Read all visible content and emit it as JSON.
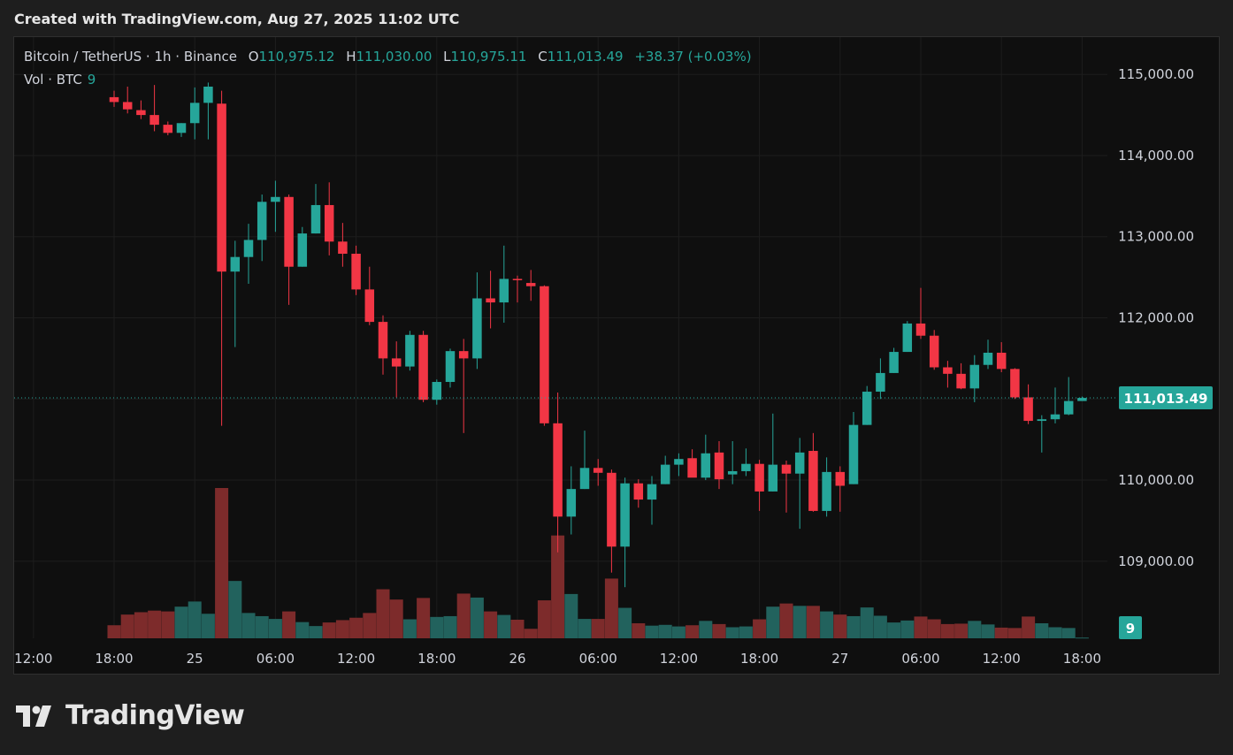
{
  "caption": "Created with TradingView.com, Aug 27, 2025 11:02 UTC",
  "legend": {
    "symbol": "Bitcoin / TetherUS · 1h · Binance",
    "o_label": "O",
    "o_value": "110,975.12",
    "h_label": "H",
    "h_value": "111,030.00",
    "l_label": "L",
    "l_value": "110,975.11",
    "c_label": "C",
    "c_value": "111,013.49",
    "change": "+38.37 (+0.03%)"
  },
  "volume_legend": {
    "label": "Vol · BTC",
    "value": "9"
  },
  "logo": {
    "text": "TradingView",
    "icon": "tradingview-logo-icon"
  },
  "colors": {
    "up": "#26a69a",
    "down": "#f23645",
    "vol_up": "#22625d",
    "vol_down": "#7d2b2b",
    "background": "#0f0f0f",
    "grid": "#1d1d1d"
  },
  "chart_data": {
    "type": "candlestick",
    "price_axis": {
      "ticks": [
        109000,
        110000,
        111000,
        112000,
        113000,
        114000,
        115000
      ],
      "tick_labels": [
        "109,000.00",
        "110,000.00",
        "111,000.00",
        "112,000.00",
        "113,000.00",
        "114,000.00",
        "115,000.00"
      ],
      "range": [
        108050,
        115460
      ]
    },
    "time_axis": {
      "ticks": [
        {
          "label": "12:00",
          "index": -6
        },
        {
          "label": "18:00",
          "index": 0
        },
        {
          "label": "25",
          "index": 6
        },
        {
          "label": "06:00",
          "index": 12
        },
        {
          "label": "12:00",
          "index": 18
        },
        {
          "label": "18:00",
          "index": 24
        },
        {
          "label": "26",
          "index": 30
        },
        {
          "label": "06:00",
          "index": 36
        },
        {
          "label": "12:00",
          "index": 42
        },
        {
          "label": "18:00",
          "index": 48
        },
        {
          "label": "27",
          "index": 54
        },
        {
          "label": "06:00",
          "index": 60
        },
        {
          "label": "12:00",
          "index": 66
        },
        {
          "label": "18:00",
          "index": 72
        }
      ]
    },
    "last_price": {
      "value": 111013.49,
      "label": "111,013.49"
    },
    "last_volume": {
      "value": 9,
      "label": "9"
    },
    "volume_range": [
      0,
      1900
    ],
    "candles": [
      {
        "o": 114720,
        "h": 114800,
        "l": 114600,
        "c": 114660,
        "v": 165
      },
      {
        "o": 114660,
        "h": 114850,
        "l": 114520,
        "c": 114570,
        "v": 300
      },
      {
        "o": 114560,
        "h": 114680,
        "l": 114450,
        "c": 114500,
        "v": 330
      },
      {
        "o": 114500,
        "h": 114870,
        "l": 114300,
        "c": 114380,
        "v": 350
      },
      {
        "o": 114380,
        "h": 114420,
        "l": 114250,
        "c": 114280,
        "v": 340
      },
      {
        "o": 114280,
        "h": 114400,
        "l": 114230,
        "c": 114400,
        "v": 400
      },
      {
        "o": 114400,
        "h": 114840,
        "l": 114200,
        "c": 114650,
        "v": 465
      },
      {
        "o": 114650,
        "h": 114900,
        "l": 114200,
        "c": 114850,
        "v": 310
      },
      {
        "o": 114640,
        "h": 114800,
        "l": 110670,
        "c": 112570,
        "v": 1900
      },
      {
        "o": 112570,
        "h": 112950,
        "l": 111640,
        "c": 112750,
        "v": 725
      },
      {
        "o": 112750,
        "h": 113160,
        "l": 112420,
        "c": 112960,
        "v": 320
      },
      {
        "o": 112960,
        "h": 113520,
        "l": 112700,
        "c": 113430,
        "v": 280
      },
      {
        "o": 113430,
        "h": 113690,
        "l": 113060,
        "c": 113490,
        "v": 245
      },
      {
        "o": 113490,
        "h": 113520,
        "l": 112160,
        "c": 112630,
        "v": 340
      },
      {
        "o": 112630,
        "h": 113120,
        "l": 112630,
        "c": 113040,
        "v": 205
      },
      {
        "o": 113040,
        "h": 113650,
        "l": 113040,
        "c": 113390,
        "v": 155
      },
      {
        "o": 113390,
        "h": 113670,
        "l": 112770,
        "c": 112940,
        "v": 200
      },
      {
        "o": 112940,
        "h": 113170,
        "l": 112630,
        "c": 112790,
        "v": 230
      },
      {
        "o": 112790,
        "h": 112890,
        "l": 112280,
        "c": 112350,
        "v": 260
      },
      {
        "o": 112350,
        "h": 112630,
        "l": 111910,
        "c": 111950,
        "v": 320
      },
      {
        "o": 111950,
        "h": 112030,
        "l": 111300,
        "c": 111500,
        "v": 620
      },
      {
        "o": 111500,
        "h": 111710,
        "l": 111020,
        "c": 111400,
        "v": 490
      },
      {
        "o": 111400,
        "h": 111840,
        "l": 111350,
        "c": 111790,
        "v": 240
      },
      {
        "o": 111790,
        "h": 111840,
        "l": 110960,
        "c": 110990,
        "v": 510
      },
      {
        "o": 110990,
        "h": 111240,
        "l": 110930,
        "c": 111210,
        "v": 270
      },
      {
        "o": 111210,
        "h": 111620,
        "l": 111140,
        "c": 111590,
        "v": 280
      },
      {
        "o": 111590,
        "h": 111740,
        "l": 110580,
        "c": 111500,
        "v": 565
      },
      {
        "o": 111500,
        "h": 112560,
        "l": 111370,
        "c": 112240,
        "v": 515
      },
      {
        "o": 112240,
        "h": 112580,
        "l": 111870,
        "c": 112190,
        "v": 340
      },
      {
        "o": 112190,
        "h": 112890,
        "l": 111940,
        "c": 112480,
        "v": 295
      },
      {
        "o": 112480,
        "h": 112520,
        "l": 112190,
        "c": 112470,
        "v": 235
      },
      {
        "o": 112430,
        "h": 112590,
        "l": 112210,
        "c": 112390,
        "v": 120
      },
      {
        "o": 112390,
        "h": 112400,
        "l": 110670,
        "c": 110700,
        "v": 480
      },
      {
        "o": 110700,
        "h": 111080,
        "l": 109110,
        "c": 109550,
        "v": 1300
      },
      {
        "o": 109550,
        "h": 110170,
        "l": 109330,
        "c": 109890,
        "v": 560
      },
      {
        "o": 109890,
        "h": 110610,
        "l": 109890,
        "c": 110150,
        "v": 245
      },
      {
        "o": 110150,
        "h": 110260,
        "l": 109930,
        "c": 110090,
        "v": 245
      },
      {
        "o": 110090,
        "h": 110130,
        "l": 108860,
        "c": 109180,
        "v": 755
      },
      {
        "o": 109180,
        "h": 110030,
        "l": 108680,
        "c": 109960,
        "v": 385
      },
      {
        "o": 109960,
        "h": 110010,
        "l": 109660,
        "c": 109760,
        "v": 190
      },
      {
        "o": 109760,
        "h": 110050,
        "l": 109450,
        "c": 109950,
        "v": 160
      },
      {
        "o": 109950,
        "h": 110300,
        "l": 109950,
        "c": 110190,
        "v": 170
      },
      {
        "o": 110190,
        "h": 110330,
        "l": 110050,
        "c": 110260,
        "v": 150
      },
      {
        "o": 110270,
        "h": 110380,
        "l": 110080,
        "c": 110030,
        "v": 165
      },
      {
        "o": 110030,
        "h": 110560,
        "l": 110000,
        "c": 110330,
        "v": 220
      },
      {
        "o": 110340,
        "h": 110480,
        "l": 109890,
        "c": 110010,
        "v": 180
      },
      {
        "o": 110070,
        "h": 110480,
        "l": 109950,
        "c": 110110,
        "v": 140
      },
      {
        "o": 110110,
        "h": 110390,
        "l": 110050,
        "c": 110200,
        "v": 150
      },
      {
        "o": 110200,
        "h": 110250,
        "l": 109620,
        "c": 109860,
        "v": 240
      },
      {
        "o": 109860,
        "h": 110820,
        "l": 109860,
        "c": 110190,
        "v": 400
      },
      {
        "o": 110190,
        "h": 110240,
        "l": 109600,
        "c": 110080,
        "v": 440
      },
      {
        "o": 110080,
        "h": 110520,
        "l": 109400,
        "c": 110340,
        "v": 410
      },
      {
        "o": 110360,
        "h": 110580,
        "l": 109610,
        "c": 109620,
        "v": 410
      },
      {
        "o": 109620,
        "h": 110280,
        "l": 109550,
        "c": 110100,
        "v": 340
      },
      {
        "o": 110100,
        "h": 110170,
        "l": 109610,
        "c": 109930,
        "v": 300
      },
      {
        "o": 109950,
        "h": 110840,
        "l": 109950,
        "c": 110680,
        "v": 280
      },
      {
        "o": 110680,
        "h": 111160,
        "l": 110680,
        "c": 111090,
        "v": 390
      },
      {
        "o": 111090,
        "h": 111500,
        "l": 111000,
        "c": 111320,
        "v": 285
      },
      {
        "o": 111320,
        "h": 111630,
        "l": 111320,
        "c": 111580,
        "v": 200
      },
      {
        "o": 111580,
        "h": 111960,
        "l": 111580,
        "c": 111930,
        "v": 225
      },
      {
        "o": 111930,
        "h": 112370,
        "l": 111740,
        "c": 111780,
        "v": 275
      },
      {
        "o": 111780,
        "h": 111850,
        "l": 111360,
        "c": 111390,
        "v": 240
      },
      {
        "o": 111390,
        "h": 111470,
        "l": 111140,
        "c": 111310,
        "v": 180
      },
      {
        "o": 111310,
        "h": 111440,
        "l": 111120,
        "c": 111130,
        "v": 185
      },
      {
        "o": 111130,
        "h": 111540,
        "l": 110960,
        "c": 111420,
        "v": 220
      },
      {
        "o": 111420,
        "h": 111730,
        "l": 111370,
        "c": 111570,
        "v": 175
      },
      {
        "o": 111570,
        "h": 111700,
        "l": 111330,
        "c": 111370,
        "v": 135
      },
      {
        "o": 111370,
        "h": 111380,
        "l": 111000,
        "c": 111020,
        "v": 130
      },
      {
        "o": 111020,
        "h": 111180,
        "l": 110690,
        "c": 110730,
        "v": 275
      },
      {
        "o": 110730,
        "h": 110800,
        "l": 110340,
        "c": 110750,
        "v": 190
      },
      {
        "o": 110750,
        "h": 111140,
        "l": 110700,
        "c": 110810,
        "v": 140
      },
      {
        "o": 110810,
        "h": 111270,
        "l": 110800,
        "c": 110975,
        "v": 130
      },
      {
        "o": 110975,
        "h": 111030,
        "l": 110975,
        "c": 111013,
        "v": 9
      }
    ]
  }
}
